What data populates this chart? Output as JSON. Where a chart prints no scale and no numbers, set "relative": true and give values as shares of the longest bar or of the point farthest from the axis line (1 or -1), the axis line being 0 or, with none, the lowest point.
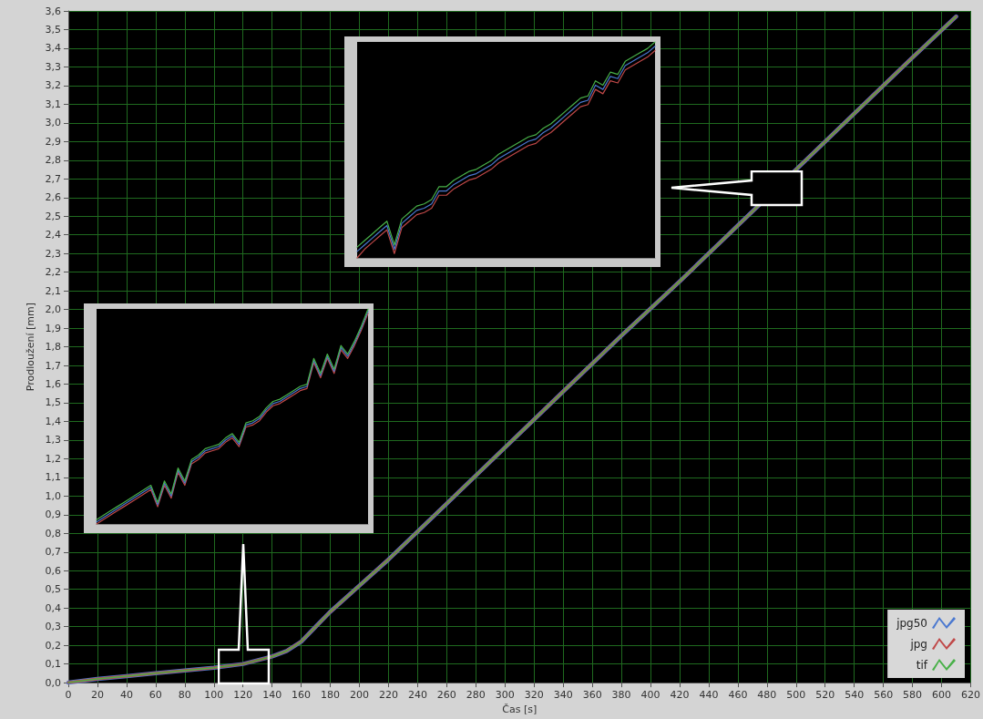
{
  "chart_data": [
    {
      "type": "line",
      "xlabel": "Čas [s]",
      "ylabel": "Prodloužení [mm]",
      "grid": true,
      "legend": "bottom right",
      "marker": "none",
      "line_style": "solid",
      "xlim": [
        0,
        620
      ],
      "xticks": [
        0,
        20,
        40,
        60,
        80,
        100,
        120,
        140,
        160,
        180,
        200,
        220,
        240,
        260,
        280,
        300,
        320,
        340,
        360,
        380,
        400,
        420,
        440,
        460,
        480,
        500,
        520,
        540,
        560,
        580,
        600,
        620
      ],
      "ylim": [
        0,
        3.6
      ],
      "yticks": [
        {
          "value": 0,
          "label": "0,0"
        },
        {
          "value": 0.1,
          "label": "0,1"
        },
        {
          "value": 0.2,
          "label": "0,2"
        },
        {
          "value": 0.3,
          "label": "0,3"
        },
        {
          "value": 0.4,
          "label": "0,4"
        },
        {
          "value": 0.5,
          "label": "0,5"
        },
        {
          "value": 0.6,
          "label": "0,6"
        },
        {
          "value": 0.7,
          "label": "0,7"
        },
        {
          "value": 0.8,
          "label": "0,8"
        },
        {
          "value": 0.9,
          "label": "0,9"
        },
        {
          "value": 1,
          "label": "1,0"
        },
        {
          "value": 1.1,
          "label": "1,1"
        },
        {
          "value": 1.2,
          "label": "1,2"
        },
        {
          "value": 1.3,
          "label": "1,3"
        },
        {
          "value": 1.4,
          "label": "1,4"
        },
        {
          "value": 1.5,
          "label": "1,5"
        },
        {
          "value": 1.6,
          "label": "1,6"
        },
        {
          "value": 1.7,
          "label": "1,7"
        },
        {
          "value": 1.8,
          "label": "1,8"
        },
        {
          "value": 1.9,
          "label": "1,9"
        },
        {
          "value": 2,
          "label": "2,0"
        },
        {
          "value": 2.1,
          "label": "2,1"
        },
        {
          "value": 2.2,
          "label": "2,2"
        },
        {
          "value": 2.3,
          "label": "2,3"
        },
        {
          "value": 2.4,
          "label": "2,4"
        },
        {
          "value": 2.5,
          "label": "2,5"
        },
        {
          "value": 2.6,
          "label": "2,6"
        },
        {
          "value": 2.7,
          "label": "2,7"
        },
        {
          "value": 2.8,
          "label": "2,8"
        },
        {
          "value": 2.9,
          "label": "2,9"
        },
        {
          "value": 3,
          "label": "3,0"
        },
        {
          "value": 3.1,
          "label": "3,1"
        },
        {
          "value": 3.2,
          "label": "3,2"
        },
        {
          "value": 3.3,
          "label": "3,3"
        },
        {
          "value": 3.4,
          "label": "3,4"
        },
        {
          "value": 3.5,
          "label": "3,5"
        },
        {
          "value": 3.6,
          "label": "3,6"
        }
      ],
      "x": [
        0,
        20,
        40,
        60,
        80,
        100,
        120,
        140,
        150,
        160,
        170,
        180,
        200,
        220,
        260,
        300,
        340,
        380,
        420,
        460,
        500,
        540,
        580,
        610
      ],
      "series": [
        {
          "name": "jpg50",
          "color": "#4a78d0",
          "values": [
            0,
            0.02,
            0.035,
            0.05,
            0.065,
            0.08,
            0.1,
            0.14,
            0.17,
            0.22,
            0.3,
            0.38,
            0.52,
            0.66,
            0.96,
            1.26,
            1.56,
            1.86,
            2.15,
            2.45,
            2.75,
            3.05,
            3.35,
            3.57
          ]
        },
        {
          "name": "jpg",
          "color": "#c04848",
          "values": [
            0,
            0.02,
            0.035,
            0.05,
            0.065,
            0.08,
            0.1,
            0.14,
            0.17,
            0.22,
            0.3,
            0.38,
            0.52,
            0.66,
            0.96,
            1.26,
            1.56,
            1.86,
            2.15,
            2.45,
            2.75,
            3.05,
            3.35,
            3.57
          ]
        },
        {
          "name": "tif",
          "color": "#48b048",
          "values": [
            0,
            0.02,
            0.035,
            0.05,
            0.065,
            0.08,
            0.1,
            0.14,
            0.17,
            0.22,
            0.3,
            0.38,
            0.52,
            0.66,
            0.96,
            1.26,
            1.56,
            1.86,
            2.15,
            2.45,
            2.75,
            3.05,
            3.35,
            3.57
          ]
        }
      ]
    },
    {
      "type": "line",
      "relative": true,
      "grid": false,
      "legend": false,
      "marker": "none",
      "line_style": "solid",
      "categories": [
        null,
        null,
        null,
        null,
        null,
        null,
        null,
        null,
        null,
        null,
        null,
        null,
        null,
        null,
        null,
        null,
        null,
        null,
        null,
        null,
        null,
        null,
        null,
        null,
        null,
        null,
        null,
        null,
        null,
        null,
        null,
        null,
        null,
        null,
        null,
        null,
        null,
        null,
        null,
        null,
        null
      ],
      "series": [
        {
          "color": "#c04848",
          "values": [
            0,
            0.04,
            0.07,
            0.1,
            0.13,
            0.02,
            0.14,
            0.17,
            0.2,
            0.21,
            0.23,
            0.29,
            0.29,
            0.32,
            0.34,
            0.36,
            0.37,
            0.39,
            0.41,
            0.44,
            0.46,
            0.48,
            0.5,
            0.52,
            0.53,
            0.56,
            0.58,
            0.61,
            0.64,
            0.67,
            0.7,
            0.71,
            0.78,
            0.76,
            0.82,
            0.81,
            0.87,
            0.89,
            0.91,
            0.93,
            0.96
          ]
        },
        {
          "color": "#4a78d0",
          "values": [
            0.03,
            0.06,
            0.09,
            0.12,
            0.15,
            0.04,
            0.16,
            0.19,
            0.22,
            0.23,
            0.25,
            0.31,
            0.31,
            0.34,
            0.36,
            0.38,
            0.39,
            0.41,
            0.43,
            0.46,
            0.48,
            0.5,
            0.52,
            0.54,
            0.55,
            0.58,
            0.6,
            0.63,
            0.66,
            0.69,
            0.72,
            0.73,
            0.8,
            0.78,
            0.84,
            0.83,
            0.89,
            0.91,
            0.93,
            0.95,
            0.98
          ]
        },
        {
          "color": "#48b048",
          "values": [
            0.05,
            0.08,
            0.11,
            0.14,
            0.17,
            0.06,
            0.18,
            0.21,
            0.24,
            0.25,
            0.27,
            0.33,
            0.33,
            0.36,
            0.38,
            0.4,
            0.41,
            0.43,
            0.45,
            0.48,
            0.5,
            0.52,
            0.54,
            0.56,
            0.57,
            0.6,
            0.62,
            0.65,
            0.68,
            0.71,
            0.74,
            0.75,
            0.82,
            0.8,
            0.86,
            0.85,
            0.91,
            0.93,
            0.95,
            0.97,
            1
          ]
        }
      ]
    },
    {
      "type": "line",
      "relative": true,
      "grid": false,
      "legend": false,
      "marker": "none",
      "line_style": "solid",
      "categories": [
        null,
        null,
        null,
        null,
        null,
        null,
        null,
        null,
        null,
        null,
        null,
        null,
        null,
        null,
        null,
        null,
        null,
        null,
        null,
        null,
        null,
        null,
        null,
        null,
        null,
        null,
        null,
        null,
        null,
        null,
        null,
        null,
        null,
        null,
        null,
        null,
        null,
        null,
        null,
        null,
        null
      ],
      "series": [
        {
          "color": "#c04848",
          "values": [
            0,
            0.02,
            0.04,
            0.06,
            0.08,
            0.1,
            0.12,
            0.14,
            0.16,
            0.08,
            0.18,
            0.12,
            0.24,
            0.18,
            0.28,
            0.3,
            0.33,
            0.34,
            0.35,
            0.38,
            0.4,
            0.36,
            0.45,
            0.46,
            0.48,
            0.52,
            0.55,
            0.56,
            0.58,
            0.6,
            0.62,
            0.63,
            0.75,
            0.68,
            0.77,
            0.7,
            0.81,
            0.77,
            0.83,
            0.9,
            0.98
          ]
        },
        {
          "color": "#4a78d0",
          "values": [
            0.01,
            0.03,
            0.05,
            0.07,
            0.09,
            0.11,
            0.13,
            0.15,
            0.17,
            0.09,
            0.19,
            0.13,
            0.25,
            0.19,
            0.29,
            0.31,
            0.34,
            0.35,
            0.36,
            0.39,
            0.41,
            0.37,
            0.46,
            0.47,
            0.49,
            0.53,
            0.56,
            0.57,
            0.59,
            0.61,
            0.63,
            0.64,
            0.76,
            0.69,
            0.78,
            0.71,
            0.82,
            0.78,
            0.84,
            0.91,
            0.99
          ]
        },
        {
          "color": "#48b048",
          "values": [
            0.02,
            0.04,
            0.06,
            0.08,
            0.1,
            0.12,
            0.14,
            0.16,
            0.18,
            0.1,
            0.2,
            0.14,
            0.26,
            0.2,
            0.3,
            0.32,
            0.35,
            0.36,
            0.37,
            0.4,
            0.42,
            0.38,
            0.47,
            0.48,
            0.5,
            0.54,
            0.57,
            0.58,
            0.6,
            0.62,
            0.64,
            0.65,
            0.77,
            0.7,
            0.79,
            0.72,
            0.83,
            0.79,
            0.85,
            0.92,
            1
          ]
        }
      ]
    }
  ]
}
